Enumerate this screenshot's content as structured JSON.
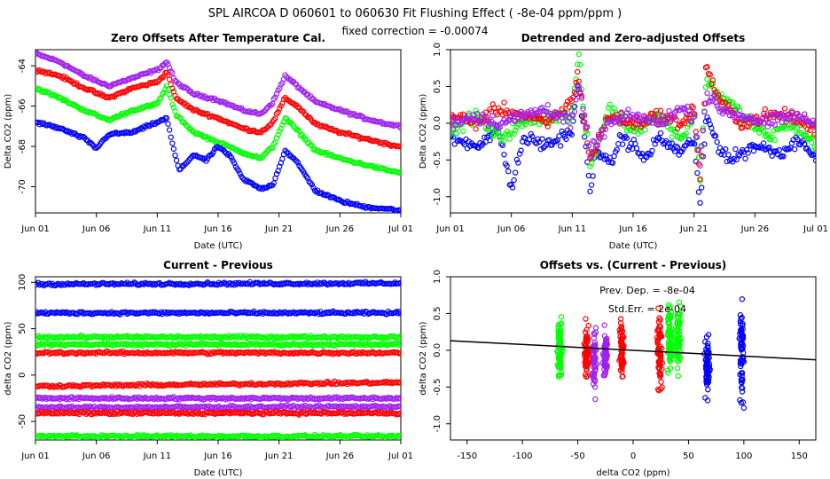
{
  "header": {
    "title": "SPL   AIRCOA D   060601 to 060630   Fit Flushing Effect ( -8e-04 ppm/ppm )",
    "subtitle": "fixed correction = -0.00074"
  },
  "colors": {
    "blue": "#0000ff",
    "red": "#ff0000",
    "green": "#00ff00",
    "purple": "#a020f0",
    "black": "#000000"
  },
  "chart_data": [
    {
      "type": "scatter",
      "title": "Zero Offsets After Temperature Cal.",
      "xlabel": "Date (UTC)",
      "ylabel": "Delta CO2 (ppm)",
      "xlim": [
        1,
        31
      ],
      "ylim": [
        -71.3,
        -63.2
      ],
      "x_ticks": [
        1,
        6,
        11,
        16,
        21,
        26,
        31
      ],
      "x_tick_labels": [
        "Jun 01",
        "Jun 06",
        "Jun 11",
        "Jun 16",
        "Jun 21",
        "Jun 26",
        "Jul 01"
      ],
      "y_ticks": [
        -70,
        -68,
        -66,
        -64
      ],
      "y_tick_labels": [
        "-70",
        "-68",
        "-66",
        "-64"
      ],
      "series": [
        {
          "color": "purple",
          "x": [
            1,
            3,
            5,
            7,
            9,
            11,
            11.8,
            12.5,
            14,
            16,
            18,
            19.5,
            20.5,
            21.5,
            22.5,
            24,
            26,
            28,
            30,
            31
          ],
          "y": [
            -63.4,
            -63.8,
            -64.5,
            -65.0,
            -64.6,
            -64.2,
            -63.8,
            -64.8,
            -65.4,
            -65.7,
            -66.2,
            -66.4,
            -65.8,
            -64.5,
            -65.0,
            -65.8,
            -66.2,
            -66.6,
            -66.9,
            -67.0
          ]
        },
        {
          "color": "red",
          "x": [
            1,
            3,
            5,
            7,
            9,
            11,
            11.8,
            12.5,
            14,
            16,
            18,
            19.5,
            20.5,
            21.5,
            22.5,
            24,
            26,
            28,
            30,
            31
          ],
          "y": [
            -64.2,
            -64.5,
            -65.1,
            -65.6,
            -65.1,
            -64.8,
            -64.3,
            -65.6,
            -66.2,
            -66.6,
            -67.1,
            -67.3,
            -66.8,
            -65.6,
            -66.0,
            -66.9,
            -67.3,
            -67.6,
            -67.9,
            -68.0
          ]
        },
        {
          "color": "green",
          "x": [
            1,
            3,
            5,
            7,
            9,
            11,
            11.8,
            12.5,
            14,
            16,
            18,
            19.5,
            20.5,
            21.5,
            22.5,
            24,
            26,
            28,
            30,
            31
          ],
          "y": [
            -65.1,
            -65.6,
            -66.2,
            -66.7,
            -66.2,
            -65.9,
            -65.0,
            -66.4,
            -67.3,
            -67.8,
            -68.3,
            -68.6,
            -68.0,
            -66.6,
            -67.2,
            -68.2,
            -68.6,
            -68.9,
            -69.2,
            -69.3
          ]
        },
        {
          "color": "blue",
          "x": [
            1,
            3,
            5,
            6,
            7,
            9,
            11,
            11.8,
            12.2,
            12.8,
            14,
            15,
            16,
            17,
            18,
            19.5,
            20.5,
            21.5,
            22.5,
            24,
            26,
            28,
            30,
            31
          ],
          "y": [
            -66.8,
            -67.1,
            -67.6,
            -68.1,
            -67.4,
            -67.3,
            -66.8,
            -66.6,
            -67.8,
            -69.2,
            -68.4,
            -68.7,
            -68.0,
            -68.5,
            -69.6,
            -70.1,
            -69.9,
            -68.2,
            -68.8,
            -70.2,
            -70.7,
            -71.0,
            -71.1,
            -71.2
          ]
        }
      ]
    },
    {
      "type": "scatter",
      "title": "Detrended and Zero-adjusted Offsets",
      "xlabel": "Date (UTC)",
      "ylabel": "Delta CO2 (ppm)",
      "xlim": [
        1,
        31
      ],
      "ylim": [
        -1.22,
        1.0
      ],
      "x_ticks": [
        1,
        6,
        11,
        16,
        21,
        26,
        31
      ],
      "x_tick_labels": [
        "Jun 01",
        "Jun 06",
        "Jun 11",
        "Jun 16",
        "Jun 21",
        "Jun 26",
        "Jul 01"
      ],
      "y_ticks": [
        -1.0,
        -0.5,
        0.0,
        0.5,
        1.0
      ],
      "y_tick_labels": [
        "-1.0",
        "-0.5",
        "0.0",
        "0.5",
        "1.0"
      ],
      "series": [
        {
          "color": "blue",
          "x": [
            1,
            3,
            5,
            6,
            7,
            9,
            11,
            11.5,
            12,
            12.5,
            13,
            14,
            15,
            16,
            17,
            18,
            19,
            20,
            21,
            21.5,
            22,
            23,
            24,
            26,
            28,
            30,
            31
          ],
          "y": [
            -0.2,
            -0.3,
            -0.1,
            -0.9,
            -0.2,
            -0.3,
            -0.1,
            0.6,
            -0.2,
            -0.95,
            -0.3,
            -0.6,
            -0.2,
            -0.3,
            -0.5,
            -0.2,
            -0.3,
            -0.4,
            -0.2,
            -1.15,
            0.1,
            -0.3,
            -0.5,
            -0.3,
            -0.4,
            -0.2,
            -0.55
          ]
        },
        {
          "color": "green",
          "x": [
            1,
            3,
            5,
            7,
            9,
            11,
            11.5,
            12,
            12.5,
            14,
            16,
            18,
            20,
            21,
            21.5,
            22,
            23,
            25,
            27,
            29,
            31
          ],
          "y": [
            -0.1,
            0.1,
            -0.2,
            0.0,
            0.1,
            0.1,
            0.95,
            0.1,
            -0.6,
            0.2,
            -0.1,
            0.1,
            -0.2,
            0.1,
            -0.7,
            0.6,
            0.4,
            0.1,
            -0.2,
            0.0,
            -0.3
          ]
        },
        {
          "color": "red",
          "x": [
            1,
            3,
            5,
            7,
            9,
            11,
            11.5,
            12,
            12.5,
            14,
            16,
            18,
            20,
            21,
            21.5,
            22,
            23,
            25,
            27,
            29,
            31
          ],
          "y": [
            0.1,
            0.0,
            0.2,
            0.1,
            0.0,
            0.3,
            0.7,
            0.0,
            -0.5,
            0.1,
            0.0,
            0.1,
            0.0,
            0.2,
            -0.8,
            0.8,
            0.3,
            0.0,
            0.1,
            0.1,
            -0.1
          ]
        },
        {
          "color": "purple",
          "x": [
            1,
            3,
            5,
            7,
            9,
            11,
            11.5,
            12,
            12.5,
            14,
            16,
            18,
            20,
            21,
            21.5,
            22,
            23,
            25,
            27,
            29,
            31
          ],
          "y": [
            0.0,
            0.1,
            0.0,
            0.1,
            0.2,
            0.0,
            0.5,
            0.1,
            -0.4,
            0.0,
            0.1,
            0.0,
            0.2,
            0.1,
            -0.5,
            0.4,
            0.2,
            0.1,
            0.0,
            0.1,
            0.0
          ]
        }
      ]
    },
    {
      "type": "scatter",
      "title": "Current - Previous",
      "xlabel": "Date (UTC)",
      "ylabel": "delta CO2 (ppm)",
      "xlim": [
        1,
        31
      ],
      "ylim": [
        -70,
        106
      ],
      "x_ticks": [
        1,
        6,
        11,
        16,
        21,
        26,
        31
      ],
      "x_tick_labels": [
        "Jun 01",
        "Jun 06",
        "Jun 11",
        "Jun 16",
        "Jun 21",
        "Jun 26",
        "Jul 01"
      ],
      "y_ticks": [
        -50,
        0,
        50,
        100
      ],
      "y_tick_labels": [
        "-50",
        "0",
        "50",
        "100"
      ],
      "series": [
        {
          "color": "blue",
          "x": [
            1,
            31
          ],
          "y": [
            98,
            99
          ]
        },
        {
          "color": "blue",
          "x": [
            1,
            31
          ],
          "y": [
            67,
            67
          ]
        },
        {
          "color": "green",
          "x": [
            1,
            31
          ],
          "y": [
            41,
            41
          ]
        },
        {
          "color": "green",
          "x": [
            1,
            31
          ],
          "y": [
            33,
            33
          ]
        },
        {
          "color": "red",
          "x": [
            1,
            31
          ],
          "y": [
            24,
            24
          ]
        },
        {
          "color": "red",
          "x": [
            1,
            31
          ],
          "y": [
            -12,
            -8
          ]
        },
        {
          "color": "purple",
          "x": [
            1,
            31
          ],
          "y": [
            -25,
            -25
          ]
        },
        {
          "color": "purple",
          "x": [
            1,
            31
          ],
          "y": [
            -35,
            -34
          ]
        },
        {
          "color": "red",
          "x": [
            1,
            31
          ],
          "y": [
            -41,
            -41
          ]
        },
        {
          "color": "green",
          "x": [
            1,
            31
          ],
          "y": [
            -66,
            -66
          ]
        }
      ]
    },
    {
      "type": "scatter",
      "title": "Offsets vs. (Current - Previous)",
      "xlabel": "delta CO2 (ppm)",
      "ylabel": "delta CO2 (ppm)",
      "xlim": [
        -165,
        165
      ],
      "ylim": [
        -1.22,
        1.0
      ],
      "x_ticks": [
        -150,
        -100,
        -50,
        0,
        50,
        100,
        150
      ],
      "x_tick_labels": [
        "-150",
        "-100",
        "-50",
        "0",
        "50",
        "100",
        "150"
      ],
      "y_ticks": [
        -1.0,
        -0.5,
        0.0,
        0.5,
        1.0
      ],
      "y_tick_labels": [
        "-1.0",
        "-0.5",
        "0.0",
        "0.5",
        "1.0"
      ],
      "annotations": [
        "Prev. Dep. = -8e-04",
        "Std.Err. = 2e-04"
      ],
      "clusters": [
        {
          "color": "green",
          "x": -66,
          "y_min": -0.7,
          "y_max": 0.7
        },
        {
          "color": "purple",
          "x": -35,
          "y_min": -0.85,
          "y_max": 0.6
        },
        {
          "color": "red",
          "x": -42,
          "y_min": -0.6,
          "y_max": 0.5
        },
        {
          "color": "purple",
          "x": -25,
          "y_min": -0.5,
          "y_max": 0.4
        },
        {
          "color": "red",
          "x": -10,
          "y_min": -0.6,
          "y_max": 0.6
        },
        {
          "color": "red",
          "x": 24,
          "y_min": -0.8,
          "y_max": 0.8
        },
        {
          "color": "green",
          "x": 33,
          "y_min": -0.6,
          "y_max": 0.95
        },
        {
          "color": "green",
          "x": 41,
          "y_min": -0.5,
          "y_max": 0.9
        },
        {
          "color": "blue",
          "x": 67,
          "y_min": -0.9,
          "y_max": 0.5
        },
        {
          "color": "blue",
          "x": 98,
          "y_min": -1.15,
          "y_max": 0.9
        }
      ],
      "fit_line": {
        "color": "black",
        "x": [
          -165,
          165
        ],
        "y": [
          0.13,
          -0.13
        ]
      }
    }
  ]
}
